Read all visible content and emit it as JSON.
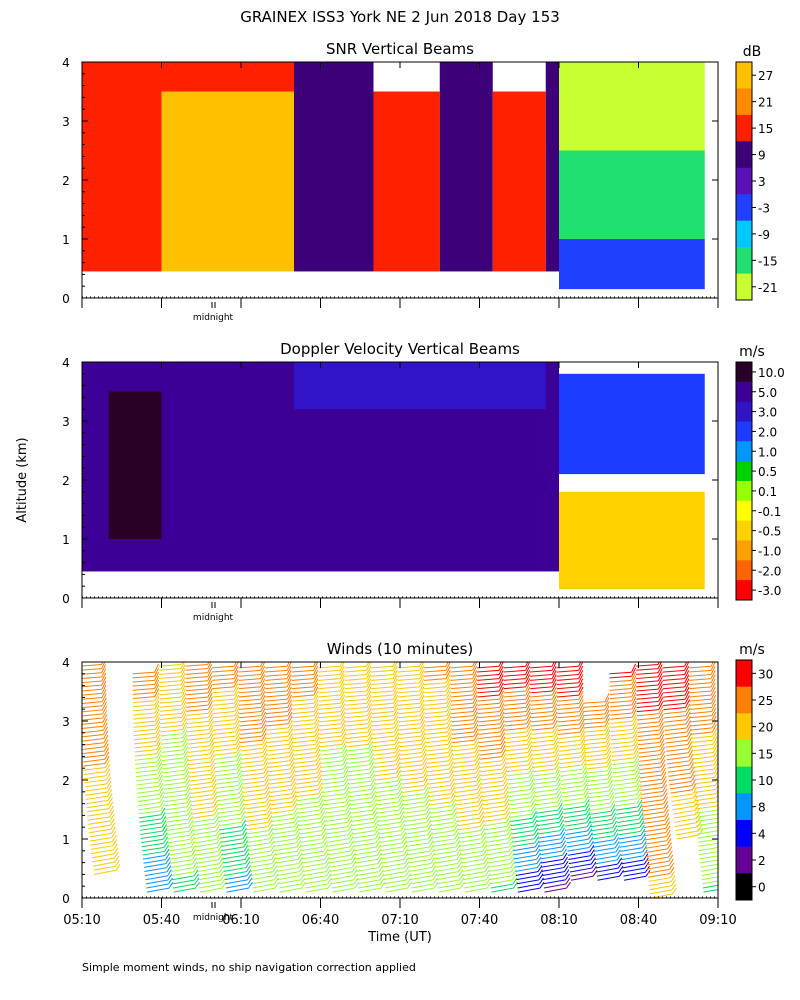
{
  "figure": {
    "title": "GRAINEX ISS3 York NE   2 Jun 2018 Day 153",
    "ylabel": "Altitude (km)",
    "xlabel": "Time (UT)",
    "footnote": "Simple moment winds, no ship navigation correction applied",
    "midnight_label": "midnight",
    "x_ticks": [
      "05:10",
      "05:40",
      "06:10",
      "06:40",
      "07:10",
      "07:40",
      "08:10",
      "08:40",
      "09:10"
    ],
    "y_ticks": [
      "0",
      "1",
      "2",
      "3",
      "4"
    ]
  },
  "chart_data": [
    {
      "type": "heatmap",
      "title": "SNR Vertical Beams",
      "unit": "dB",
      "xlabel": "Time (UT)",
      "ylabel": "Altitude (km)",
      "xlim": [
        "05:10",
        "09:10"
      ],
      "ylim": [
        0,
        4
      ],
      "colorbar_ticks": [
        "27",
        "21",
        "15",
        "9",
        "3",
        "-3",
        "-9",
        "-15",
        "-21"
      ],
      "colorbar_colors": [
        "#ffc000",
        "#ff8c00",
        "#ff2000",
        "#3c0078",
        "#5a10b4",
        "#2040ff",
        "#00c8ff",
        "#20e070",
        "#c8ff30"
      ],
      "regions": [
        {
          "t_start": "05:10",
          "t_end": "05:40",
          "alt_from": 0.45,
          "alt_to": 4.0,
          "value_db": 15
        },
        {
          "t_start": "05:40",
          "t_end": "06:30",
          "alt_from": 0.45,
          "alt_to": 3.5,
          "value_db": 27
        },
        {
          "t_start": "05:40",
          "t_end": "06:30",
          "alt_from": 3.5,
          "alt_to": 4.0,
          "value_db": 15
        },
        {
          "t_start": "06:30",
          "t_end": "07:00",
          "alt_from": 0.45,
          "alt_to": 4.0,
          "value_db": 9
        },
        {
          "t_start": "07:00",
          "t_end": "07:25",
          "alt_from": 0.45,
          "alt_to": 3.5,
          "value_db": 15
        },
        {
          "t_start": "07:25",
          "t_end": "07:45",
          "alt_from": 0.45,
          "alt_to": 4.0,
          "value_db": 9
        },
        {
          "t_start": "07:45",
          "t_end": "08:05",
          "alt_from": 0.45,
          "alt_to": 3.5,
          "value_db": 15
        },
        {
          "t_start": "08:05",
          "t_end": "08:10",
          "alt_from": 0.45,
          "alt_to": 4.0,
          "value_db": 9
        },
        {
          "t_start": "08:10",
          "t_end": "09:05",
          "alt_from": 2.5,
          "alt_to": 4.0,
          "value_db": -21
        },
        {
          "t_start": "08:10",
          "t_end": "09:05",
          "alt_from": 1.0,
          "alt_to": 2.5,
          "value_db": -15
        },
        {
          "t_start": "08:10",
          "t_end": "09:05",
          "alt_from": 0.15,
          "alt_to": 1.0,
          "value_db": -3
        }
      ]
    },
    {
      "type": "heatmap",
      "title": "Doppler Velocity Vertical Beams",
      "unit": "m/s",
      "xlabel": "Time (UT)",
      "ylabel": "Altitude (km)",
      "xlim": [
        "05:10",
        "09:10"
      ],
      "ylim": [
        0,
        4
      ],
      "colorbar_ticks": [
        "10.0",
        "5.0",
        "3.0",
        "2.0",
        "1.0",
        "0.5",
        "0.1",
        "-0.1",
        "-0.5",
        "-1.0",
        "-2.0",
        "-3.0"
      ],
      "colorbar_colors": [
        "#280028",
        "#3c0096",
        "#3214c8",
        "#1e3cff",
        "#0096ff",
        "#00d200",
        "#96ff00",
        "#ffff00",
        "#ffd200",
        "#ffa000",
        "#ff6400",
        "#ff0000"
      ],
      "regions": [
        {
          "t_start": "05:10",
          "t_end": "08:10",
          "alt_from": 0.45,
          "alt_to": 4.0,
          "value_ms": 5.0
        },
        {
          "t_start": "05:20",
          "t_end": "05:40",
          "alt_from": 1.0,
          "alt_to": 3.5,
          "value_ms": 10.0
        },
        {
          "t_start": "06:30",
          "t_end": "08:05",
          "alt_from": 3.2,
          "alt_to": 4.0,
          "value_ms": 3.0
        },
        {
          "t_start": "08:10",
          "t_end": "09:05",
          "alt_from": 2.1,
          "alt_to": 3.8,
          "value_ms": 2.0
        },
        {
          "t_start": "08:10",
          "t_end": "09:05",
          "alt_from": 0.15,
          "alt_to": 1.8,
          "value_ms": -0.5
        }
      ]
    },
    {
      "type": "scatter",
      "title": "Winds (10 minutes)",
      "unit": "m/s",
      "xlabel": "Time (UT)",
      "ylabel": "Altitude (km)",
      "xlim": [
        "05:10",
        "09:10"
      ],
      "ylim": [
        0,
        4
      ],
      "colorbar_ticks": [
        "30",
        "25",
        "20",
        "15",
        "10",
        "8",
        "4",
        "2",
        "0"
      ],
      "colorbar_colors": [
        "#ff0000",
        "#ff8000",
        "#ffc800",
        "#96ff32",
        "#00dc64",
        "#0096ff",
        "#0000ff",
        "#640096",
        "#000000"
      ],
      "wind_profiles": [
        {
          "time": "05:10",
          "speed_low": 20,
          "speed_high": 25,
          "alt_from": 0.4,
          "alt_to": 4.0
        },
        {
          "time": "05:30",
          "speed_low": 6,
          "speed_high": 25,
          "alt_from": 0.1,
          "alt_to": 3.8
        },
        {
          "time": "05:40",
          "speed_low": 12,
          "speed_high": 20,
          "alt_from": 0.1,
          "alt_to": 4.0
        },
        {
          "time": "05:50",
          "speed_low": 14,
          "speed_high": 25,
          "alt_from": 0.1,
          "alt_to": 4.0
        },
        {
          "time": "06:00",
          "speed_low": 8,
          "speed_high": 24,
          "alt_from": 0.1,
          "alt_to": 3.9
        },
        {
          "time": "06:10",
          "speed_low": 14,
          "speed_high": 27,
          "alt_from": 0.1,
          "alt_to": 3.9
        },
        {
          "time": "06:20",
          "speed_low": 13,
          "speed_high": 26,
          "alt_from": 0.1,
          "alt_to": 3.9
        },
        {
          "time": "06:30",
          "speed_low": 13,
          "speed_high": 24,
          "alt_from": 0.1,
          "alt_to": 3.9
        },
        {
          "time": "06:40",
          "speed_low": 13,
          "speed_high": 20,
          "alt_from": 0.1,
          "alt_to": 3.9
        },
        {
          "time": "06:50",
          "speed_low": 13,
          "speed_high": 20,
          "alt_from": 0.1,
          "alt_to": 3.9
        },
        {
          "time": "07:00",
          "speed_low": 14,
          "speed_high": 21,
          "alt_from": 0.1,
          "alt_to": 3.9
        },
        {
          "time": "07:10",
          "speed_low": 14,
          "speed_high": 22,
          "alt_from": 0.1,
          "alt_to": 3.9
        },
        {
          "time": "07:20",
          "speed_low": 14,
          "speed_high": 23,
          "alt_from": 0.1,
          "alt_to": 3.9
        },
        {
          "time": "07:30",
          "speed_low": 14,
          "speed_high": 27,
          "alt_from": 0.1,
          "alt_to": 3.9
        },
        {
          "time": "07:40",
          "speed_low": 12,
          "speed_high": 30,
          "alt_from": 0.1,
          "alt_to": 3.9
        },
        {
          "time": "07:50",
          "speed_low": 4,
          "speed_high": 30,
          "alt_from": 0.1,
          "alt_to": 3.9
        },
        {
          "time": "08:00",
          "speed_low": 2,
          "speed_high": 31,
          "alt_from": 0.1,
          "alt_to": 3.9
        },
        {
          "time": "08:10",
          "speed_low": 2,
          "speed_high": 32,
          "alt_from": 0.3,
          "alt_to": 3.9
        },
        {
          "time": "08:20",
          "speed_low": 4,
          "speed_high": 26,
          "alt_from": 0.3,
          "alt_to": 3.3
        },
        {
          "time": "08:30",
          "speed_low": 4,
          "speed_high": 28,
          "alt_from": 0.3,
          "alt_to": 3.8
        },
        {
          "time": "08:40",
          "speed_low": 22,
          "speed_high": 29,
          "alt_from": 0.0,
          "alt_to": 4.0
        },
        {
          "time": "08:50",
          "speed_low": 20,
          "speed_high": 30,
          "alt_from": 1.0,
          "alt_to": 3.9
        },
        {
          "time": "09:00",
          "speed_low": 12,
          "speed_high": 27,
          "alt_from": 0.1,
          "alt_to": 3.9
        }
      ]
    }
  ]
}
